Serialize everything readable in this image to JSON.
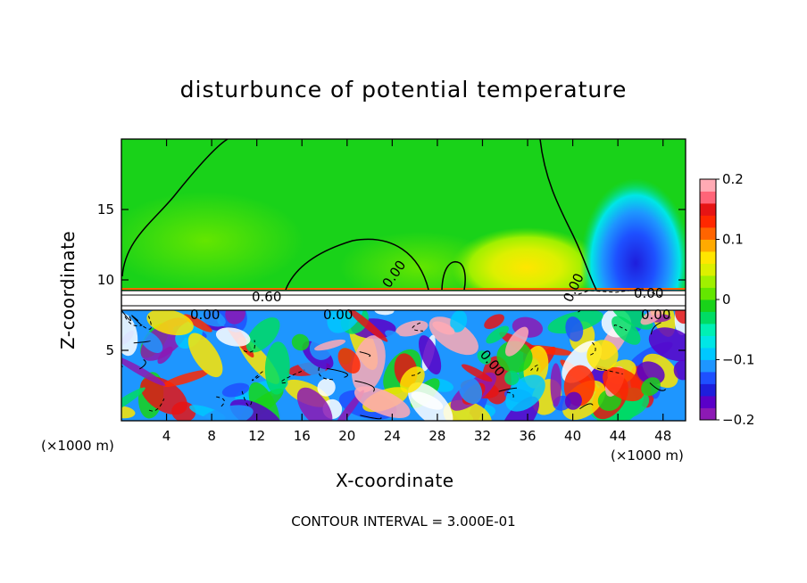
{
  "chart_data": {
    "type": "heatmap",
    "title": "disturbunce of potential temperature",
    "xlabel": "X-coordinate",
    "ylabel": "Z-coordinate",
    "x_unit_label": "(×1000 m)",
    "xlim": [
      0,
      50
    ],
    "ylim": [
      0,
      20
    ],
    "x_ticks": [
      4,
      8,
      12,
      16,
      20,
      24,
      28,
      32,
      36,
      40,
      44,
      48
    ],
    "y_ticks": [
      5,
      10,
      15
    ],
    "colorbar": {
      "range": [
        -0.2,
        0.2
      ],
      "ticks": [
        {
          "value": 0.2,
          "label": "0.2"
        },
        {
          "value": 0.1,
          "label": "0.1"
        },
        {
          "value": 0,
          "label": "0"
        },
        {
          "value": -0.1,
          "label": "−0.1"
        },
        {
          "value": -0.2,
          "label": "−0.2"
        }
      ],
      "colors": [
        "#8c19b4",
        "#5a00c8",
        "#1e1edc",
        "#1e50ff",
        "#1e96ff",
        "#00c8ff",
        "#00e6e6",
        "#00f0b4",
        "#00dc64",
        "#19d219",
        "#64e600",
        "#a0f000",
        "#dcf000",
        "#ffe600",
        "#ffaa00",
        "#ff6400",
        "#ff2800",
        "#e61414",
        "#ff6478",
        "#ffaab4"
      ]
    },
    "contour_labels": [
      "0.60",
      "0.00",
      "0.00",
      "0.00",
      "0.00",
      "0.00",
      "0.00",
      "0.00"
    ],
    "footer": "CONTOUR INTERVAL = 3.000E-01"
  }
}
